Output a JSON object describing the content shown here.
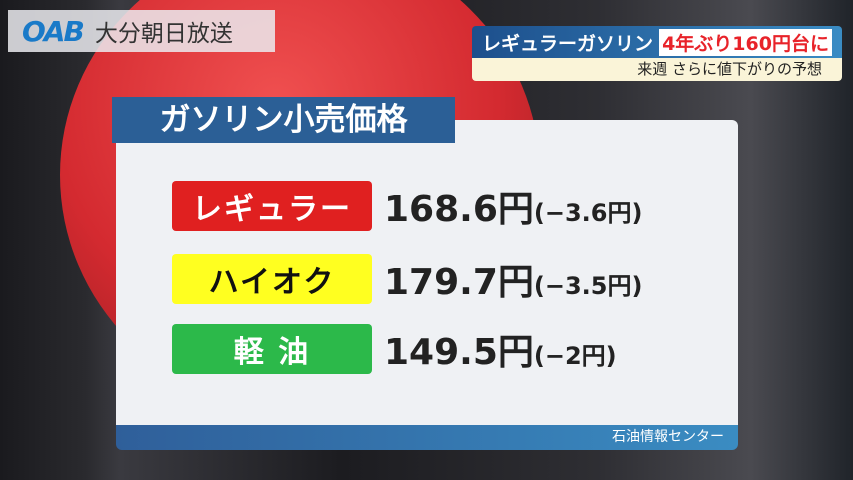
{
  "logo": {
    "mark": "OAB",
    "name": "大分朝日放送"
  },
  "headline": {
    "main": "レギュラーガソリン",
    "highlight": "4年ぶり160円台に",
    "sub": "来週 さらに値下がりの予想"
  },
  "panel": {
    "title": "ガソリン小売価格",
    "source": "石油情報センター",
    "rows": [
      {
        "label": "レギュラー",
        "price": "168.6円",
        "change": "(−3.6円)",
        "color": "#e02020",
        "text_color": "#ffffff"
      },
      {
        "label": "ハイオク",
        "price": "179.7円",
        "change": "(−3.5円)",
        "color": "#ffff20",
        "text_color": "#111111"
      },
      {
        "label": "軽 油",
        "price": "149.5円",
        "change": "(−2円)",
        "color": "#2cb94a",
        "text_color": "#ffffff"
      }
    ]
  }
}
